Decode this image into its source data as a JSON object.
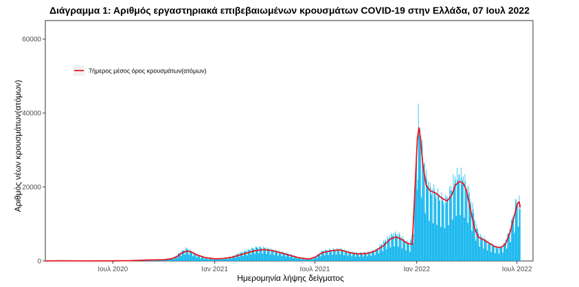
{
  "chart_data": {
    "type": "bar",
    "title": "Διάγραμμα 1: Αριθμός εργαστηριακά επιβεβαιωμένων κρουσμάτων COVID-19 στην Ελλάδα, 07 Ιουλ 2022",
    "xlabel": "Ημερομηνία λήψης δείγματος",
    "ylabel": "Αριθμός νέων κρουσμάτων(ατόμων)",
    "ylim": [
      0,
      65000
    ],
    "yticks": [
      0,
      20000,
      40000,
      60000
    ],
    "xrange": [
      "2020-03-01",
      "2022-07-30"
    ],
    "xticks": [
      {
        "date": "2020-07-01",
        "label": "Ιουλ 2020"
      },
      {
        "date": "2021-01-01",
        "label": "Ιαν 2021"
      },
      {
        "date": "2021-07-01",
        "label": "Ιουλ 2021"
      },
      {
        "date": "2022-01-01",
        "label": "Ιαν 2022"
      },
      {
        "date": "2022-07-01",
        "label": "Ιουλ 2022"
      }
    ],
    "grid": false,
    "legend_position": "top-left",
    "legend": [
      "7ήμερος μέσος όρος κρουσμάτων(ατόμων)"
    ],
    "colors": {
      "bars": "#00b0ec",
      "line": "#e8161b"
    },
    "series": [
      {
        "name": "",
        "kind": "bar",
        "points": [
          [
            "2020-03-01",
            30
          ],
          [
            "2020-03-15",
            80
          ],
          [
            "2020-04-01",
            60
          ],
          [
            "2020-04-15",
            40
          ],
          [
            "2020-05-01",
            20
          ],
          [
            "2020-05-15",
            20
          ],
          [
            "2020-06-01",
            20
          ],
          [
            "2020-06-15",
            30
          ],
          [
            "2020-07-01",
            30
          ],
          [
            "2020-07-15",
            40
          ],
          [
            "2020-08-01",
            110
          ],
          [
            "2020-08-15",
            200
          ],
          [
            "2020-09-01",
            260
          ],
          [
            "2020-09-15",
            300
          ],
          [
            "2020-10-01",
            350
          ],
          [
            "2020-10-15",
            700
          ],
          [
            "2020-10-22",
            1200
          ],
          [
            "2020-10-29",
            2100
          ],
          [
            "2020-11-05",
            2800
          ],
          [
            "2020-11-10",
            3300
          ],
          [
            "2020-11-15",
            3100
          ],
          [
            "2020-11-20",
            2600
          ],
          [
            "2020-11-27",
            1900
          ],
          [
            "2020-12-05",
            1300
          ],
          [
            "2020-12-12",
            1000
          ],
          [
            "2020-12-20",
            800
          ],
          [
            "2021-01-01",
            650
          ],
          [
            "2021-01-10",
            700
          ],
          [
            "2021-01-20",
            800
          ],
          [
            "2021-02-01",
            1200
          ],
          [
            "2021-02-10",
            1800
          ],
          [
            "2021-02-20",
            2400
          ],
          [
            "2021-03-01",
            2800
          ],
          [
            "2021-03-10",
            3300
          ],
          [
            "2021-03-20",
            3700
          ],
          [
            "2021-04-01",
            3500
          ],
          [
            "2021-04-10",
            3200
          ],
          [
            "2021-04-20",
            2800
          ],
          [
            "2021-05-01",
            2400
          ],
          [
            "2021-05-15",
            1900
          ],
          [
            "2021-06-01",
            1000
          ],
          [
            "2021-06-15",
            600
          ],
          [
            "2021-06-25",
            600
          ],
          [
            "2021-07-05",
            1500
          ],
          [
            "2021-07-15",
            2700
          ],
          [
            "2021-07-25",
            2900
          ],
          [
            "2021-08-05",
            3100
          ],
          [
            "2021-08-15",
            3200
          ],
          [
            "2021-08-25",
            2800
          ],
          [
            "2021-09-05",
            2300
          ],
          [
            "2021-09-20",
            2100
          ],
          [
            "2021-10-05",
            2300
          ],
          [
            "2021-10-20",
            3000
          ],
          [
            "2021-11-01",
            4900
          ],
          [
            "2021-11-10",
            6100
          ],
          [
            "2021-11-20",
            7200
          ],
          [
            "2021-12-01",
            6900
          ],
          [
            "2021-12-10",
            5500
          ],
          [
            "2021-12-20",
            4500
          ],
          [
            "2021-12-26",
            9000
          ],
          [
            "2021-12-29",
            22000
          ],
          [
            "2022-01-01",
            30000
          ],
          [
            "2022-01-03",
            40000
          ],
          [
            "2022-01-05",
            36000
          ],
          [
            "2022-01-08",
            33000
          ],
          [
            "2022-01-12",
            28000
          ],
          [
            "2022-01-18",
            22000
          ],
          [
            "2022-01-25",
            19000
          ],
          [
            "2022-02-01",
            18500
          ],
          [
            "2022-02-08",
            17500
          ],
          [
            "2022-02-15",
            16500
          ],
          [
            "2022-02-22",
            16000
          ],
          [
            "2022-03-01",
            18000
          ],
          [
            "2022-03-08",
            21000
          ],
          [
            "2022-03-15",
            22500
          ],
          [
            "2022-03-22",
            22500
          ],
          [
            "2022-03-29",
            21000
          ],
          [
            "2022-04-05",
            18000
          ],
          [
            "2022-04-12",
            14000
          ],
          [
            "2022-04-19",
            9000
          ],
          [
            "2022-04-26",
            6500
          ],
          [
            "2022-05-03",
            6000
          ],
          [
            "2022-05-10",
            5000
          ],
          [
            "2022-05-17",
            4300
          ],
          [
            "2022-05-24",
            3700
          ],
          [
            "2022-05-31",
            3500
          ],
          [
            "2022-06-07",
            4300
          ],
          [
            "2022-06-14",
            6500
          ],
          [
            "2022-06-21",
            10000
          ],
          [
            "2022-06-28",
            15000
          ],
          [
            "2022-07-04",
            17000
          ],
          [
            "2022-07-07",
            13500
          ]
        ]
      },
      {
        "name": "7ήμερος μέσος όρος κρουσμάτων(ατόμων)",
        "kind": "line",
        "points": [
          [
            "2020-03-01",
            20
          ],
          [
            "2020-04-01",
            50
          ],
          [
            "2020-05-01",
            20
          ],
          [
            "2020-07-01",
            30
          ],
          [
            "2020-08-01",
            100
          ],
          [
            "2020-09-01",
            250
          ],
          [
            "2020-10-01",
            350
          ],
          [
            "2020-10-15",
            600
          ],
          [
            "2020-10-25",
            1200
          ],
          [
            "2020-11-03",
            2200
          ],
          [
            "2020-11-12",
            2700
          ],
          [
            "2020-11-20",
            2400
          ],
          [
            "2020-12-01",
            1600
          ],
          [
            "2020-12-15",
            900
          ],
          [
            "2021-01-01",
            600
          ],
          [
            "2021-01-15",
            650
          ],
          [
            "2021-02-01",
            1000
          ],
          [
            "2021-02-15",
            1600
          ],
          [
            "2021-03-01",
            2200
          ],
          [
            "2021-03-15",
            2800
          ],
          [
            "2021-04-01",
            3100
          ],
          [
            "2021-04-15",
            2800
          ],
          [
            "2021-05-01",
            2200
          ],
          [
            "2021-05-15",
            1600
          ],
          [
            "2021-06-01",
            900
          ],
          [
            "2021-06-20",
            500
          ],
          [
            "2021-07-01",
            1000
          ],
          [
            "2021-07-15",
            2300
          ],
          [
            "2021-08-01",
            2800
          ],
          [
            "2021-08-15",
            3000
          ],
          [
            "2021-09-01",
            2300
          ],
          [
            "2021-09-15",
            1900
          ],
          [
            "2021-10-01",
            2000
          ],
          [
            "2021-10-15",
            2500
          ],
          [
            "2021-11-01",
            4000
          ],
          [
            "2021-11-15",
            6000
          ],
          [
            "2021-11-25",
            6500
          ],
          [
            "2021-12-05",
            5800
          ],
          [
            "2021-12-15",
            4800
          ],
          [
            "2021-12-24",
            4500
          ],
          [
            "2021-12-29",
            20000
          ],
          [
            "2022-01-02",
            33000
          ],
          [
            "2022-01-05",
            36000
          ],
          [
            "2022-01-08",
            33000
          ],
          [
            "2022-01-12",
            26000
          ],
          [
            "2022-01-18",
            20500
          ],
          [
            "2022-01-25",
            19000
          ],
          [
            "2022-02-05",
            18300
          ],
          [
            "2022-02-15",
            17000
          ],
          [
            "2022-02-25",
            16200
          ],
          [
            "2022-03-05",
            17800
          ],
          [
            "2022-03-12",
            20500
          ],
          [
            "2022-03-19",
            21500
          ],
          [
            "2022-03-26",
            21000
          ],
          [
            "2022-04-01",
            19000
          ],
          [
            "2022-04-08",
            14000
          ],
          [
            "2022-04-15",
            9000
          ],
          [
            "2022-04-22",
            6500
          ],
          [
            "2022-05-01",
            5800
          ],
          [
            "2022-05-12",
            4800
          ],
          [
            "2022-05-22",
            3900
          ],
          [
            "2022-06-01",
            3600
          ],
          [
            "2022-06-10",
            4500
          ],
          [
            "2022-06-18",
            7500
          ],
          [
            "2022-06-25",
            11500
          ],
          [
            "2022-07-02",
            15500
          ],
          [
            "2022-07-05",
            16000
          ],
          [
            "2022-07-07",
            14500
          ]
        ]
      }
    ]
  }
}
